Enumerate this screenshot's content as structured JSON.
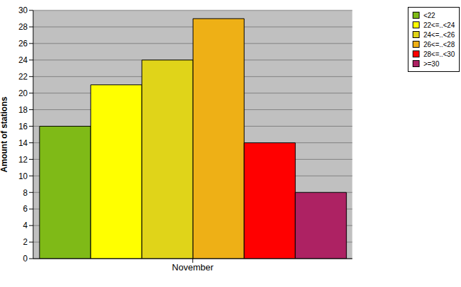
{
  "chart_data": {
    "type": "bar",
    "categories": [
      "November"
    ],
    "series": [
      {
        "name": "<22",
        "color": "#7fba17",
        "values": [
          16
        ]
      },
      {
        "name": "22<=..<24",
        "color": "#ffff00",
        "values": [
          21
        ]
      },
      {
        "name": "24<=..<26",
        "color": "#e0d419",
        "values": [
          24
        ]
      },
      {
        "name": "26<=..<28",
        "color": "#eeb016",
        "values": [
          29
        ]
      },
      {
        "name": "28<=..<30",
        "color": "#ff0000",
        "values": [
          14
        ]
      },
      {
        "name": ">=30",
        "color": "#ad2263",
        "values": [
          8
        ]
      }
    ],
    "y_label": "Amount of stations",
    "ylim": [
      0,
      30
    ],
    "yticks": [
      0,
      2,
      4,
      6,
      8,
      10,
      12,
      14,
      16,
      18,
      20,
      22,
      24,
      26,
      28,
      30
    ],
    "grid": true,
    "legend": "top right"
  }
}
